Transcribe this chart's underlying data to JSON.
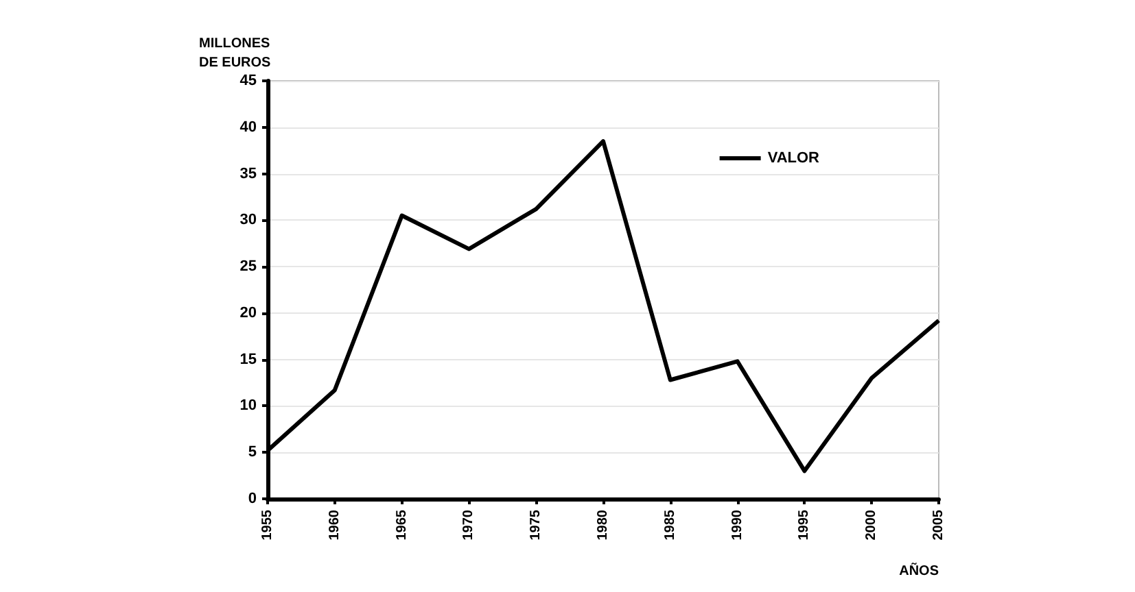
{
  "chart_data": {
    "type": "line",
    "ylabel": "MILLONES\nDE EUROS",
    "xlabel": "AÑOS",
    "x": [
      1955,
      1960,
      1965,
      1970,
      1975,
      1980,
      1985,
      1990,
      1995,
      2000,
      2005
    ],
    "series": [
      {
        "name": "VALOR",
        "color": "#000000",
        "values": [
          5.2,
          11.7,
          30.5,
          26.9,
          31.2,
          38.5,
          12.8,
          14.8,
          3.0,
          13.0,
          19.2
        ]
      }
    ],
    "xlim": [
      1955,
      2005
    ],
    "xticks": [
      1955,
      1960,
      1965,
      1970,
      1975,
      1980,
      1985,
      1990,
      1995,
      2000,
      2005
    ],
    "ylim": [
      0,
      45
    ],
    "yticks": [
      0,
      5,
      10,
      15,
      20,
      25,
      30,
      35,
      40,
      45
    ],
    "grid": "y",
    "legend": "top right",
    "marker": "none",
    "line_style": "solid"
  }
}
